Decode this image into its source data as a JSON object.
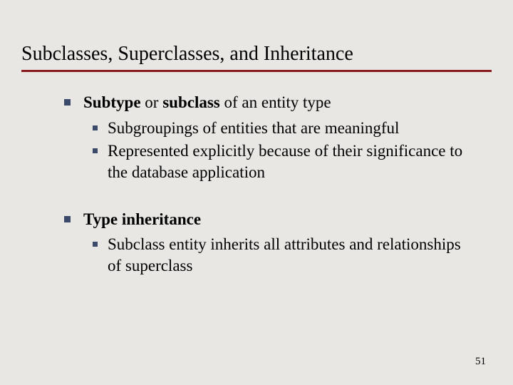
{
  "title": "Subclasses, Superclasses, and Inheritance",
  "items": [
    {
      "runs": [
        {
          "text": "Subtype",
          "bold": true
        },
        {
          "text": " or ",
          "bold": false
        },
        {
          "text": "subclass",
          "bold": true
        },
        {
          "text": " of an entity type",
          "bold": false
        }
      ],
      "sub": [
        {
          "text": "Subgroupings of entities that are meaningful"
        },
        {
          "text": "Represented explicitly because of their significance to the database application"
        }
      ]
    },
    {
      "runs": [
        {
          "text": "Type inheritance",
          "bold": true
        }
      ],
      "sub": [
        {
          "text": "Subclass entity inherits all attributes and relationships of superclass"
        }
      ]
    }
  ],
  "page_number": "51",
  "colors": {
    "background": "#e8e7e4",
    "underline": "#8b1a1a",
    "bullet": "#3b4a6b",
    "text": "#000000"
  }
}
